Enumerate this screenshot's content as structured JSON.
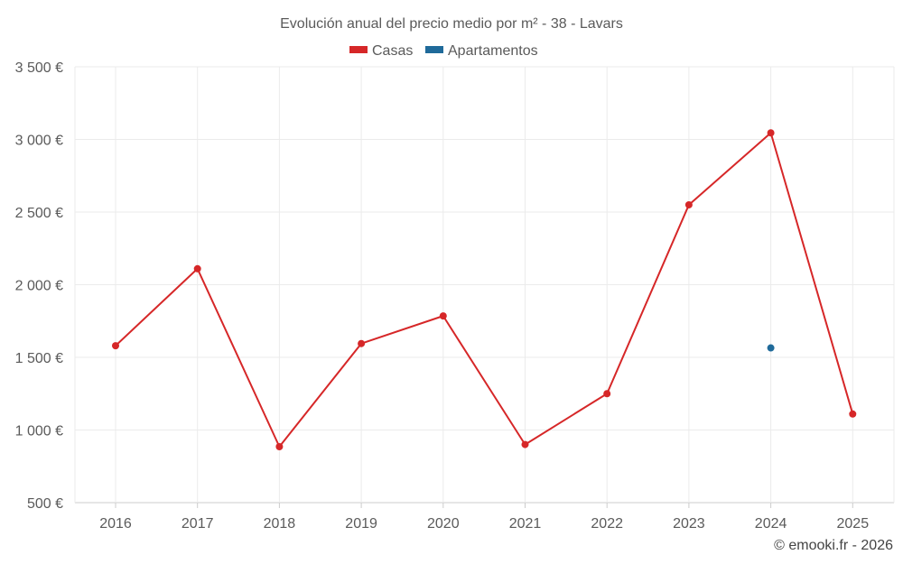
{
  "chart_data": {
    "type": "line",
    "title": "Evolución anual del precio medio por m² - 38 - Lavars",
    "categories": [
      "2016",
      "2017",
      "2018",
      "2019",
      "2020",
      "2021",
      "2022",
      "2023",
      "2024",
      "2025"
    ],
    "series": [
      {
        "name": "Casas",
        "color": "#d62728",
        "values": [
          1580,
          2110,
          885,
          1595,
          1785,
          900,
          1250,
          2550,
          3045,
          1110
        ]
      },
      {
        "name": "Apartamentos",
        "color": "#1f6a9a",
        "values": [
          null,
          null,
          null,
          null,
          null,
          null,
          null,
          null,
          1565,
          null
        ]
      }
    ],
    "ylim": [
      500,
      3500
    ],
    "yticks": [
      500,
      1000,
      1500,
      2000,
      2500,
      3000,
      3500
    ],
    "ytick_labels": [
      "500 €",
      "1 000 €",
      "1 500 €",
      "2 000 €",
      "2 500 €",
      "3 000 €",
      "3 500 €"
    ],
    "xlabel": "",
    "ylabel": "",
    "grid": true,
    "legend_position": "top-center",
    "credit": "© emooki.fr - 2026"
  }
}
